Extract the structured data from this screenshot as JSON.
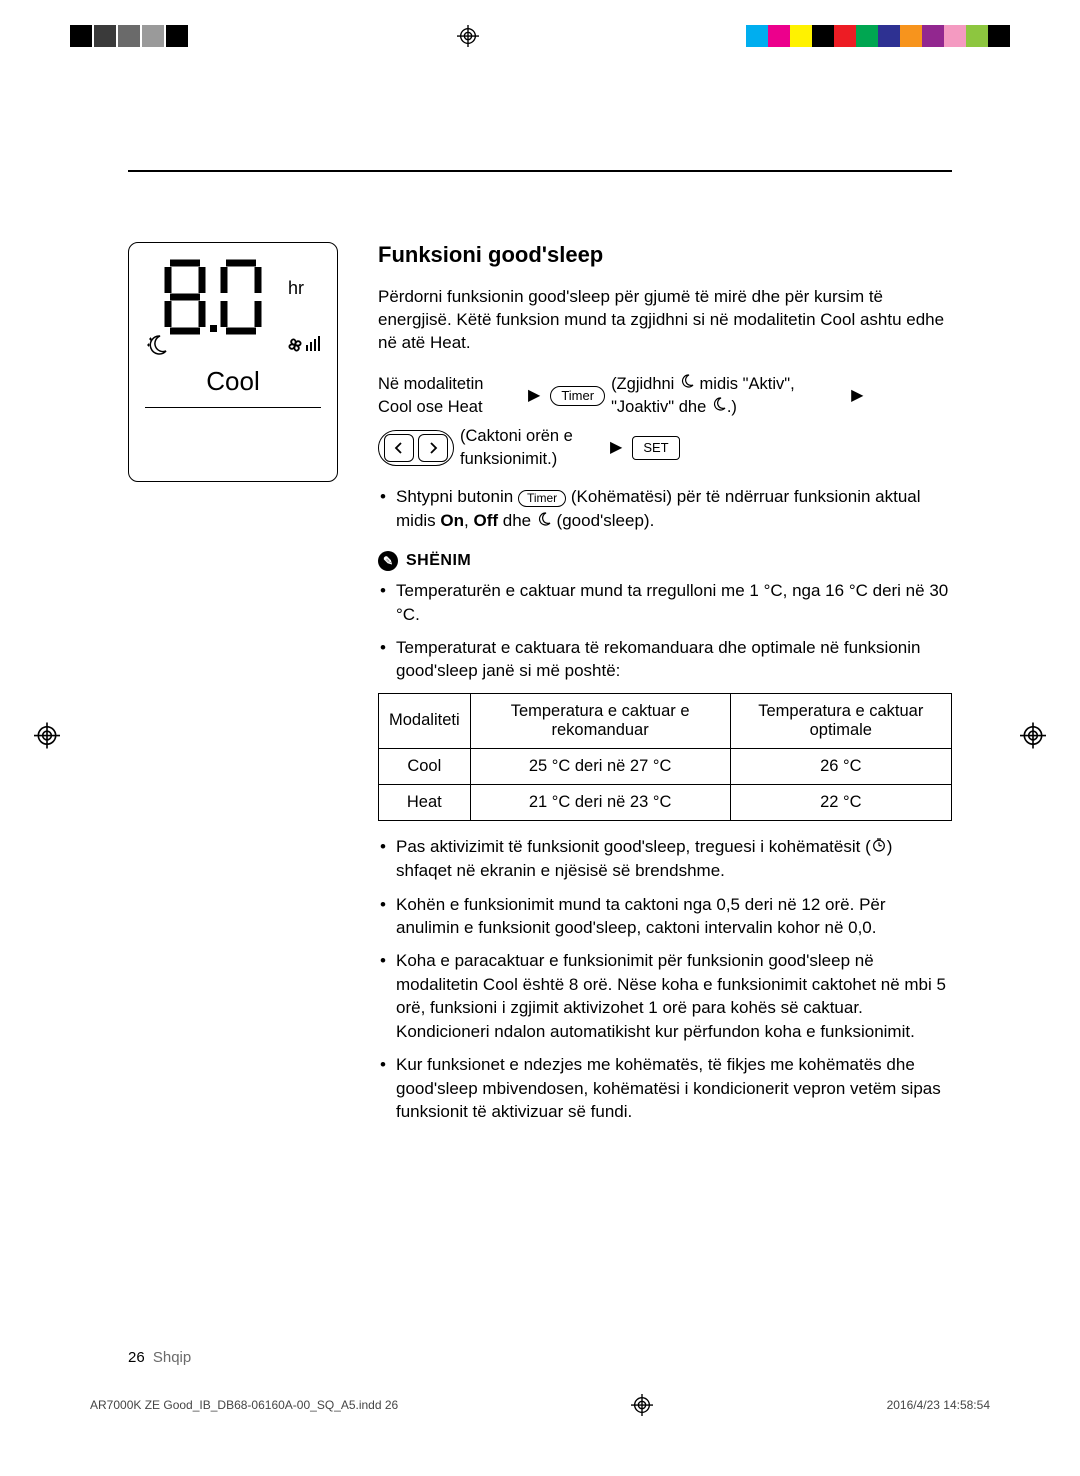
{
  "cropMarks": {
    "leftSwatches": [
      "#000000",
      "#3a3a3a",
      "#6a6a6a",
      "#9a9a9a",
      "#000000"
    ],
    "rightSwatches": [
      "#00aeef",
      "#ec008c",
      "#fff200",
      "#000000",
      "#ed1c24",
      "#00a651",
      "#2e3192",
      "#f7941d",
      "#92278f",
      "#f49ac1",
      "#8dc63f",
      "#000000"
    ]
  },
  "display": {
    "digits": "8.0",
    "hrLabel": "hr",
    "modeLabel": "Cool"
  },
  "section": {
    "title": "Funksioni good'sleep",
    "intro": "Përdorni funksionin good'sleep për gjumë të mirë dhe për kursim të energjisë. Këtë funksion mund ta zgjidhni si në modalitetin Cool ashtu edhe në atë Heat."
  },
  "flow": {
    "step1": "Në modalitetin Cool ose Heat",
    "timerBtn": "Timer",
    "step2a": "(Zgjidhni ",
    "step2b": " midis \"Aktiv\", \"Joaktiv\" dhe",
    "step2c": ".)",
    "step3": "(Caktoni orën e funksionimit.)",
    "setBtn": "SET"
  },
  "postFlowBullet": {
    "a": "Shtypni butonin",
    "timerBtn": "Timer",
    "b": " (Kohëmatësi) për të ndërruar funksionin aktual midis ",
    "on": "On",
    "mid": ", ",
    "off": "Off",
    "c": " dhe  ",
    "d": " (good'sleep)."
  },
  "note": {
    "label": "SHËNIM",
    "items": [
      "Temperaturën e caktuar mund ta rregulloni me 1 °C, nga 16 °C deri në 30 °C.",
      "Temperaturat e caktuara të rekomanduara dhe optimale në funksionin good'sleep janë si më poshtë:"
    ]
  },
  "table": {
    "headers": [
      "Modaliteti",
      "Temperatura e caktuar e rekomanduar",
      "Temperatura e caktuar optimale"
    ],
    "rows": [
      [
        "Cool",
        "25 °C deri në 27 °C",
        "26 °C"
      ],
      [
        "Heat",
        "21 °C deri në 23 °C",
        "22 °C"
      ]
    ]
  },
  "afterTableBullets": [
    "Pas aktivizimit të funksionit good'sleep, treguesi i kohëmatësit (    ) shfaqet në ekranin e njësisë së brendshme.",
    "Kohën e funksionimit mund ta caktoni nga 0,5 deri në 12 orë. Për anulimin e funksionit good'sleep, caktoni intervalin kohor në 0,0.",
    "Koha e paracaktuar e funksionimit për funksionin good'sleep në modalitetin Cool është 8 orë. Nëse koha e funksionimit caktohet në mbi 5 orë, funksioni i zgjimit aktivizohet 1 orë para kohës së caktuar. Kondicioneri ndalon automatikisht kur përfundon koha e funksionimit.",
    "Kur funksionet e ndezjes me kohëmatës, të fikjes me kohëmatës dhe good'sleep mbivendosen, kohëmatësi i kondicionerit vepron vetëm sipas funksionit të aktivizuar së fundi."
  ],
  "footer": {
    "pageNum": "26",
    "lang": "Shqip"
  },
  "printFooter": {
    "file": "AR7000K ZE Good_IB_DB68-06160A-00_SQ_A5.indd   26",
    "timestamp": "2016/4/23   14:58:54"
  }
}
